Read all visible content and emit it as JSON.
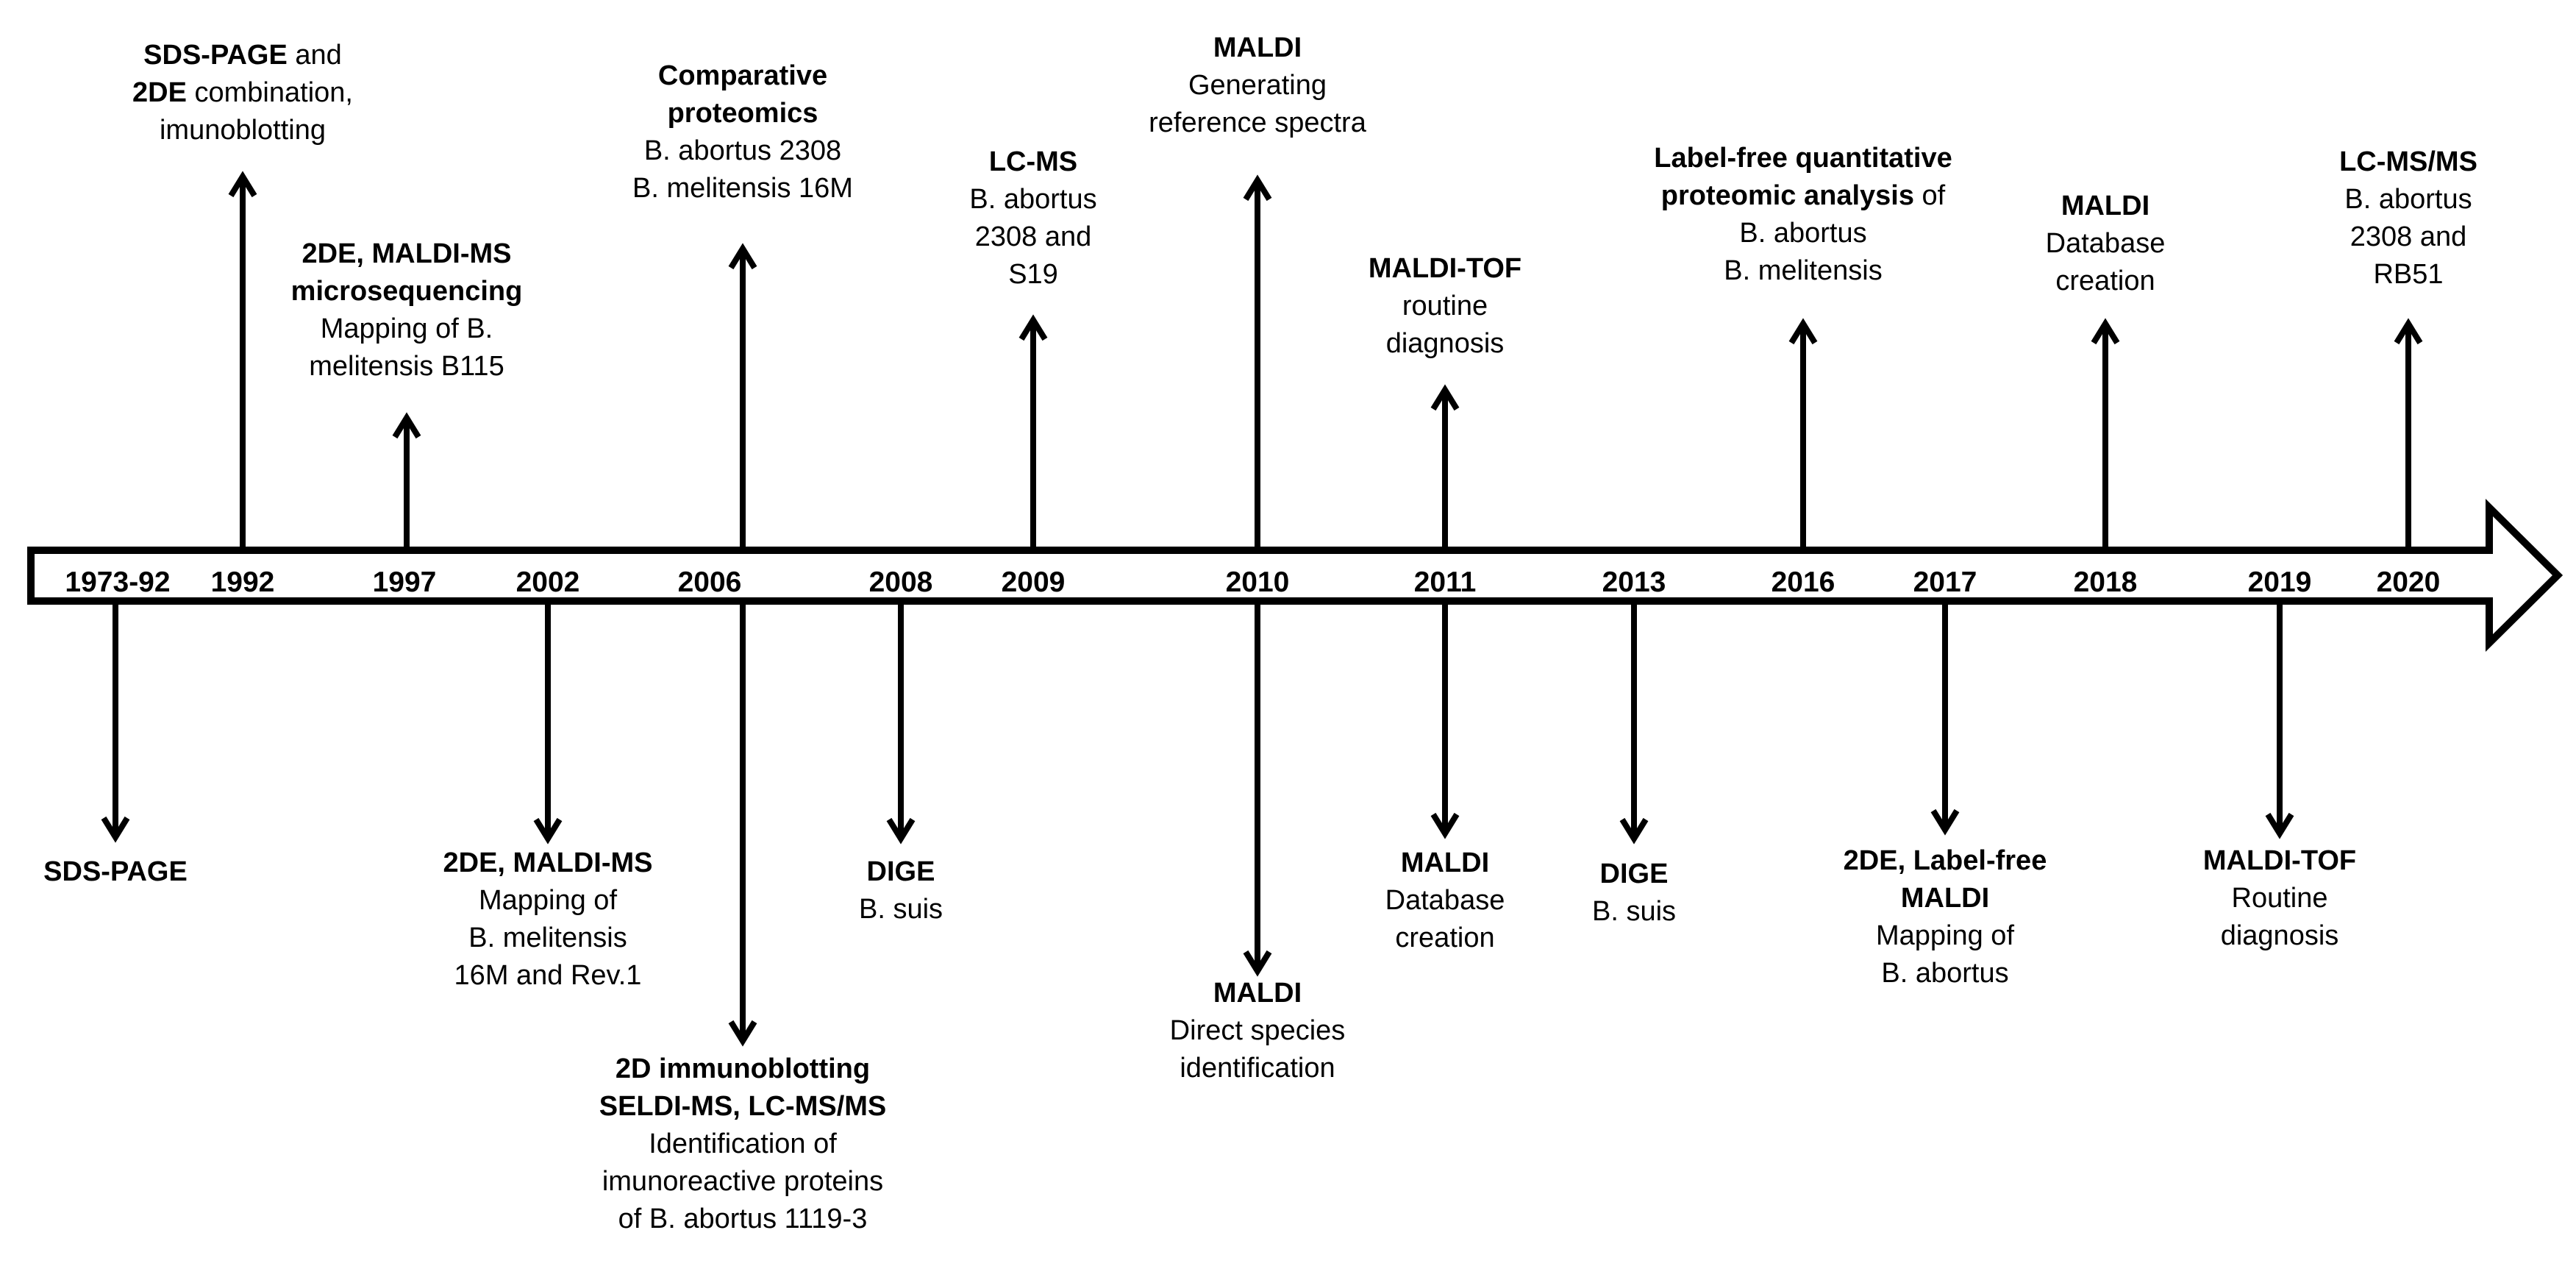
{
  "timeline": {
    "years": [
      "1973-92",
      "1992",
      "1997",
      "2002",
      "2006",
      "2008",
      "2009",
      "2010",
      "2011",
      "2013",
      "2016",
      "2017",
      "2018",
      "2019",
      "2020"
    ],
    "events": [
      {
        "year_index": 0,
        "dir": "down",
        "lines": [
          [
            {
              "t": "SDS-PAGE",
              "b": true
            }
          ]
        ]
      },
      {
        "year_index": 1,
        "dir": "up",
        "lines": [
          [
            {
              "t": "SDS-PAGE",
              "b": true
            },
            {
              "t": " and",
              "b": false
            }
          ],
          [
            {
              "t": "2DE",
              "b": true
            },
            {
              "t": " combination,",
              "b": false
            }
          ],
          [
            {
              "t": "imunoblotting",
              "b": false
            }
          ]
        ]
      },
      {
        "year_index": 2,
        "dir": "up",
        "lines": [
          [
            {
              "t": "2DE, MALDI-MS",
              "b": true
            }
          ],
          [
            {
              "t": "microsequencing",
              "b": true
            }
          ],
          [
            {
              "t": "Mapping of B.",
              "b": false
            }
          ],
          [
            {
              "t": "melitensis B115",
              "b": false
            }
          ]
        ]
      },
      {
        "year_index": 3,
        "dir": "down",
        "lines": [
          [
            {
              "t": "2DE, MALDI-MS",
              "b": true
            }
          ],
          [
            {
              "t": "Mapping of",
              "b": false
            }
          ],
          [
            {
              "t": "B. melitensis",
              "b": false
            }
          ],
          [
            {
              "t": "16M and Rev.1",
              "b": false
            }
          ]
        ]
      },
      {
        "year_index": 4,
        "dir": "up",
        "lines": [
          [
            {
              "t": "Comparative",
              "b": true
            }
          ],
          [
            {
              "t": "proteomics",
              "b": true
            }
          ],
          [
            {
              "t": "B. abortus 2308",
              "b": false
            }
          ],
          [
            {
              "t": "B. melitensis 16M",
              "b": false
            }
          ]
        ]
      },
      {
        "year_index": 4,
        "dir": "down",
        "lines": [
          [
            {
              "t": "2D immunoblotting",
              "b": true
            }
          ],
          [
            {
              "t": "SELDI-MS, LC-MS/MS",
              "b": true
            }
          ],
          [
            {
              "t": "Identification of",
              "b": false
            }
          ],
          [
            {
              "t": "imunoreactive proteins",
              "b": false
            }
          ],
          [
            {
              "t": "of B. abortus 1119-3",
              "b": false
            }
          ]
        ]
      },
      {
        "year_index": 5,
        "dir": "down",
        "lines": [
          [
            {
              "t": "DIGE",
              "b": true
            }
          ],
          [
            {
              "t": "B. suis",
              "b": false
            }
          ]
        ]
      },
      {
        "year_index": 6,
        "dir": "up",
        "lines": [
          [
            {
              "t": "LC-MS",
              "b": true
            }
          ],
          [
            {
              "t": "B. abortus",
              "b": false
            }
          ],
          [
            {
              "t": "2308 and",
              "b": false
            }
          ],
          [
            {
              "t": "S19",
              "b": false
            }
          ]
        ]
      },
      {
        "year_index": 7,
        "dir": "up",
        "lines": [
          [
            {
              "t": "MALDI",
              "b": true
            }
          ],
          [
            {
              "t": "Generating",
              "b": false
            }
          ],
          [
            {
              "t": "reference spectra",
              "b": false
            }
          ]
        ]
      },
      {
        "year_index": 7,
        "dir": "down",
        "lines": [
          [
            {
              "t": "MALDI",
              "b": true
            }
          ],
          [
            {
              "t": "Direct species",
              "b": false
            }
          ],
          [
            {
              "t": "identification",
              "b": false
            }
          ]
        ]
      },
      {
        "year_index": 8,
        "dir": "up",
        "lines": [
          [
            {
              "t": "MALDI-TOF",
              "b": true
            }
          ],
          [
            {
              "t": "routine",
              "b": false
            }
          ],
          [
            {
              "t": "diagnosis",
              "b": false
            }
          ]
        ]
      },
      {
        "year_index": 8,
        "dir": "down",
        "lines": [
          [
            {
              "t": "MALDI",
              "b": true
            }
          ],
          [
            {
              "t": "Database",
              "b": false
            }
          ],
          [
            {
              "t": "creation",
              "b": false
            }
          ]
        ]
      },
      {
        "year_index": 9,
        "dir": "down",
        "lines": [
          [
            {
              "t": "DIGE",
              "b": true
            }
          ],
          [
            {
              "t": "B. suis",
              "b": false
            }
          ]
        ]
      },
      {
        "year_index": 10,
        "dir": "up",
        "lines": [
          [
            {
              "t": "Label-free quantitative",
              "b": true
            }
          ],
          [
            {
              "t": "proteomic analysis",
              "b": true
            },
            {
              "t": " of",
              "b": false
            }
          ],
          [
            {
              "t": "B. abortus",
              "b": false
            }
          ],
          [
            {
              "t": "B. melitensis",
              "b": false
            }
          ]
        ]
      },
      {
        "year_index": 11,
        "dir": "down",
        "lines": [
          [
            {
              "t": "2DE, Label-free",
              "b": true
            }
          ],
          [
            {
              "t": "MALDI",
              "b": true
            }
          ],
          [
            {
              "t": "Mapping of",
              "b": false
            }
          ],
          [
            {
              "t": "B. abortus",
              "b": false
            }
          ]
        ]
      },
      {
        "year_index": 12,
        "dir": "up",
        "lines": [
          [
            {
              "t": "MALDI",
              "b": true
            }
          ],
          [
            {
              "t": "Database",
              "b": false
            }
          ],
          [
            {
              "t": "creation",
              "b": false
            }
          ]
        ]
      },
      {
        "year_index": 13,
        "dir": "down",
        "lines": [
          [
            {
              "t": "MALDI-TOF",
              "b": true
            }
          ],
          [
            {
              "t": "Routine",
              "b": false
            }
          ],
          [
            {
              "t": "diagnosis",
              "b": false
            }
          ]
        ]
      },
      {
        "year_index": 14,
        "dir": "up",
        "lines": [
          [
            {
              "t": "LC-MS/MS",
              "b": true
            }
          ],
          [
            {
              "t": "B. abortus",
              "b": false
            }
          ],
          [
            {
              "t": "2308 and",
              "b": false
            }
          ],
          [
            {
              "t": "RB51",
              "b": false
            }
          ]
        ]
      }
    ]
  }
}
